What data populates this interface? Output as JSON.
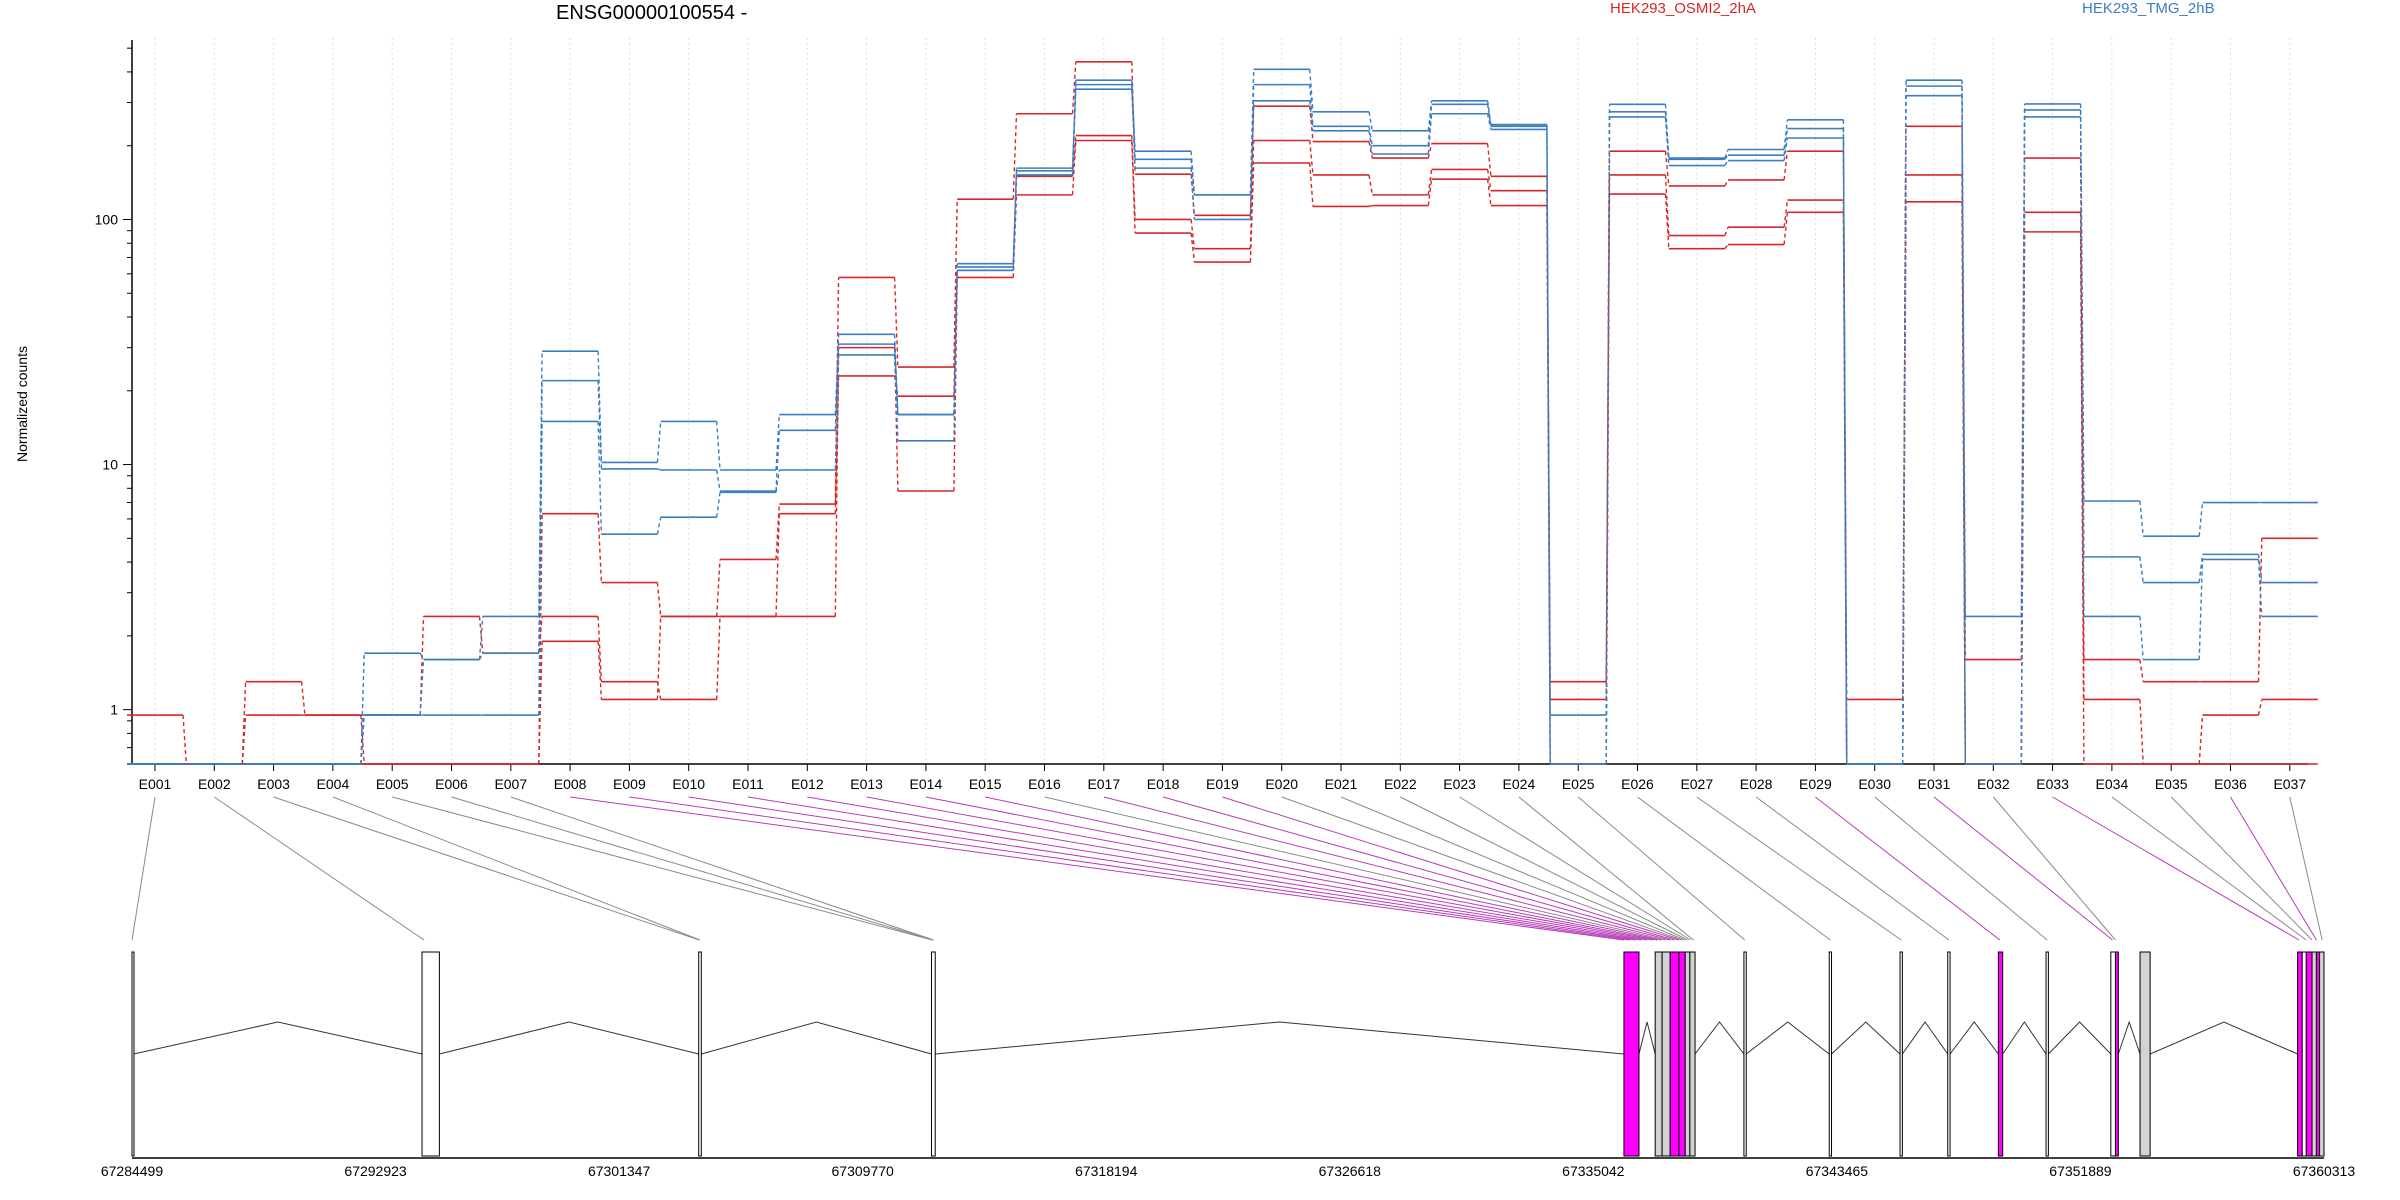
{
  "chart_data": {
    "type": "line",
    "title": "ENSG00000100554 -",
    "ylabel": "Normalized counts",
    "yscale": "log",
    "ylim": [
      0.6,
      520
    ],
    "yticks": [
      1,
      10,
      100
    ],
    "ytick_labels": [
      "1",
      "10",
      "100"
    ],
    "categories": [
      "E001",
      "E002",
      "E003",
      "E004",
      "E005",
      "E006",
      "E007",
      "E008",
      "E009",
      "E010",
      "E011",
      "E012",
      "E013",
      "E014",
      "E015",
      "E016",
      "E017",
      "E018",
      "E019",
      "E020",
      "E021",
      "E022",
      "E023",
      "E024",
      "E025",
      "E026",
      "E027",
      "E028",
      "E029",
      "E030",
      "E031",
      "E032",
      "E033",
      "E034",
      "E035",
      "E036",
      "E037"
    ],
    "legend": [
      {
        "name": "HEK293_OSMI2_2hA",
        "color": "#d62728"
      },
      {
        "name": "HEK293_TMG_2hB",
        "color": "#3b7dbf"
      }
    ],
    "series": [
      {
        "group": 0,
        "color": "#d62728",
        "values": [
          0.95,
          0.6,
          1.3,
          0.95,
          0.6,
          0.6,
          0.6,
          6.3,
          3.3,
          2.4,
          4.1,
          6.9,
          58,
          25,
          121,
          270,
          440,
          153,
          104,
          290,
          208,
          178,
          204,
          150,
          1.3,
          190,
          137,
          145,
          190,
          1.1,
          240,
          1.6,
          178,
          1.6,
          1.3,
          1.3,
          5.0
        ]
      },
      {
        "group": 0,
        "color": "#d62728",
        "values": [
          0.6,
          0.6,
          0.95,
          0.95,
          0.95,
          2.4,
          1.7,
          2.4,
          1.3,
          1.1,
          2.4,
          6.3,
          23,
          19,
          62,
          150,
          220,
          100,
          76,
          210,
          152,
          126,
          160,
          131,
          1.1,
          152,
          86,
          93,
          120,
          0.6,
          152,
          0.6,
          107,
          1.1,
          0.6,
          0.95,
          1.1
        ]
      },
      {
        "group": 0,
        "color": "#d62728",
        "values": [
          0.6,
          0.6,
          0.6,
          0.6,
          0.6,
          0.6,
          0.6,
          1.9,
          1.1,
          2.4,
          2.4,
          2.4,
          30,
          7.8,
          58,
          126,
          210,
          88,
          67,
          170,
          113,
          114,
          146,
          114,
          0.6,
          127,
          76,
          79,
          107,
          0.6,
          118,
          0.6,
          89,
          0.6,
          0.6,
          0.6,
          0.6
        ]
      },
      {
        "group": 1,
        "color": "#3b7dbf",
        "values": [
          0.6,
          0.6,
          0.6,
          0.6,
          1.7,
          1.6,
          2.4,
          29,
          10.2,
          15,
          9.5,
          16,
          34,
          16,
          66,
          162,
          370,
          190,
          126,
          410,
          275,
          230,
          305,
          244,
          0.95,
          295,
          178,
          193,
          255,
          0.6,
          370,
          2.4,
          296,
          7.1,
          5.1,
          7.0,
          7.0
        ]
      },
      {
        "group": 1,
        "color": "#3b7dbf",
        "values": [
          0.6,
          0.6,
          0.6,
          0.6,
          0.95,
          1.6,
          1.7,
          22,
          9.6,
          9.5,
          7.8,
          13.8,
          31,
          16,
          64,
          158,
          355,
          176,
          126,
          355,
          240,
          200,
          295,
          240,
          0.6,
          275,
          176,
          183,
          235,
          0.6,
          350,
          0.6,
          280,
          4.2,
          3.3,
          4.3,
          3.3
        ]
      },
      {
        "group": 1,
        "color": "#3b7dbf",
        "values": [
          0.6,
          0.6,
          0.6,
          0.6,
          0.95,
          0.95,
          0.95,
          15,
          5.2,
          6.1,
          7.7,
          9.5,
          28,
          12.5,
          62,
          152,
          340,
          162,
          100,
          305,
          230,
          185,
          270,
          233,
          0.6,
          262,
          166,
          174,
          215,
          0.6,
          320,
          0.6,
          262,
          2.4,
          1.6,
          4.1,
          2.4
        ]
      }
    ],
    "gene_model": {
      "coord_labels": [
        "67284499",
        "67292923",
        "67301347",
        "67309770",
        "67318194",
        "67326618",
        "67335042",
        "67343465",
        "67351889",
        "67360313"
      ],
      "coord_range": [
        67284499,
        67360313
      ],
      "exons": [
        {
          "id": "E001",
          "start": 67284499,
          "end": 67284560,
          "highlight": false,
          "fill": "#ffffff"
        },
        {
          "id": "E002",
          "start": 67294530,
          "end": 67295130,
          "highlight": false,
          "fill": "#ffffff"
        },
        {
          "id": "E003",
          "start": 67304100,
          "end": 67304190,
          "highlight": false,
          "fill": "#ffffff"
        },
        {
          "id": "E004",
          "start": 67312150,
          "end": 67312280,
          "highlight": false,
          "fill": "#ffffff"
        },
        {
          "id": "E005",
          "start": 67336100,
          "end": 67336620,
          "highlight": true,
          "fill": "#ff00ff"
        },
        {
          "id": "E006",
          "start": 67337180,
          "end": 67337420,
          "highlight": false,
          "fill": "#d3d3d3"
        },
        {
          "id": "E007",
          "start": 67337420,
          "end": 67337700,
          "highlight": false,
          "fill": "#d3d3d3"
        },
        {
          "id": "E008",
          "start": 67337700,
          "end": 67338000,
          "highlight": true,
          "fill": "#ff00ff"
        },
        {
          "id": "E009",
          "start": 67338000,
          "end": 67338220,
          "highlight": true,
          "fill": "#ff00ff"
        },
        {
          "id": "E010",
          "start": 67338220,
          "end": 67338380,
          "highlight": false,
          "fill": "#d3d3d3"
        },
        {
          "id": "E011",
          "start": 67338380,
          "end": 67338560,
          "highlight": false,
          "fill": "#d3d3d3"
        },
        {
          "id": "E012",
          "start": 67340250,
          "end": 67340330,
          "highlight": false,
          "fill": "#ffffff"
        },
        {
          "id": "E013",
          "start": 67343200,
          "end": 67343280,
          "highlight": false,
          "fill": "#ffffff"
        },
        {
          "id": "E014",
          "start": 67345650,
          "end": 67345730,
          "highlight": false,
          "fill": "#ffffff"
        },
        {
          "id": "E015",
          "start": 67347300,
          "end": 67347380,
          "highlight": false,
          "fill": "#ffffff"
        },
        {
          "id": "E016",
          "start": 67349050,
          "end": 67349200,
          "highlight": true,
          "fill": "#ff00ff"
        },
        {
          "id": "E017",
          "start": 67350700,
          "end": 67350780,
          "highlight": false,
          "fill": "#ffffff"
        },
        {
          "id": "E018",
          "start": 67352940,
          "end": 67353100,
          "highlight": false,
          "fill": "#ffffff"
        },
        {
          "id": "E019",
          "start": 67353100,
          "end": 67353200,
          "highlight": true,
          "fill": "#ff00ff"
        },
        {
          "id": "E020",
          "start": 67353950,
          "end": 67354300,
          "highlight": false,
          "fill": "#d3d3d3"
        },
        {
          "id": "E021",
          "start": 67359400,
          "end": 67359560,
          "highlight": true,
          "fill": "#ff00ff"
        },
        {
          "id": "E022",
          "start": 67359560,
          "end": 67359700,
          "highlight": false,
          "fill": "#ffffff"
        },
        {
          "id": "E023",
          "start": 67359700,
          "end": 67359900,
          "highlight": true,
          "fill": "#ff00ff"
        },
        {
          "id": "E024",
          "start": 67359900,
          "end": 67360050,
          "highlight": false,
          "fill": "#d3d3d3"
        },
        {
          "id": "E025",
          "start": 67360050,
          "end": 67360160,
          "highlight": true,
          "fill": "#ff00ff"
        },
        {
          "id": "E026",
          "start": 67360160,
          "end": 67360313,
          "highlight": false,
          "fill": "#d3d3d3"
        }
      ],
      "connectors": [
        {
          "exon": "E001",
          "target": 67284499,
          "highlight": false
        },
        {
          "exon": "E002",
          "target": 67294600,
          "highlight": false
        },
        {
          "exon": "E003",
          "target": 67304120,
          "highlight": false
        },
        {
          "exon": "E004",
          "target": 67304140,
          "highlight": false
        },
        {
          "exon": "E005",
          "target": 67312180,
          "highlight": false
        },
        {
          "exon": "E006",
          "target": 67312200,
          "highlight": false
        },
        {
          "exon": "E007",
          "target": 67312220,
          "highlight": false
        },
        {
          "exon": "E008",
          "target": 67336100,
          "highlight": true
        },
        {
          "exon": "E009",
          "target": 67336300,
          "highlight": true
        },
        {
          "exon": "E010",
          "target": 67336500,
          "highlight": true
        },
        {
          "exon": "E011",
          "target": 67336700,
          "highlight": true
        },
        {
          "exon": "E012",
          "target": 67336900,
          "highlight": true
        },
        {
          "exon": "E013",
          "target": 67337100,
          "highlight": true
        },
        {
          "exon": "E014",
          "target": 67337250,
          "highlight": true
        },
        {
          "exon": "E015",
          "target": 67337400,
          "highlight": true
        },
        {
          "exon": "E016",
          "target": 67337550,
          "highlight": false
        },
        {
          "exon": "E017",
          "target": 67337700,
          "highlight": true
        },
        {
          "exon": "E018",
          "target": 67337850,
          "highlight": true
        },
        {
          "exon": "E019",
          "target": 67338000,
          "highlight": true
        },
        {
          "exon": "E020",
          "target": 67338100,
          "highlight": false
        },
        {
          "exon": "E021",
          "target": 67338200,
          "highlight": false
        },
        {
          "exon": "E022",
          "target": 67338300,
          "highlight": false
        },
        {
          "exon": "E023",
          "target": 67338400,
          "highlight": false
        },
        {
          "exon": "E024",
          "target": 67338500,
          "highlight": false
        },
        {
          "exon": "E025",
          "target": 67340280,
          "highlight": false
        },
        {
          "exon": "E026",
          "target": 67343240,
          "highlight": false
        },
        {
          "exon": "E027",
          "target": 67345690,
          "highlight": false
        },
        {
          "exon": "E028",
          "target": 67347340,
          "highlight": false
        },
        {
          "exon": "E029",
          "target": 67349100,
          "highlight": true
        },
        {
          "exon": "E030",
          "target": 67350740,
          "highlight": false
        },
        {
          "exon": "E031",
          "target": 67353000,
          "highlight": true
        },
        {
          "exon": "E032",
          "target": 67353100,
          "highlight": false
        },
        {
          "exon": "E033",
          "target": 67359450,
          "highlight": true
        },
        {
          "exon": "E034",
          "target": 67359700,
          "highlight": false
        },
        {
          "exon": "E035",
          "target": 67359900,
          "highlight": false
        },
        {
          "exon": "E036",
          "target": 67360050,
          "highlight": true
        },
        {
          "exon": "E037",
          "target": 67360250,
          "highlight": false
        }
      ]
    }
  }
}
